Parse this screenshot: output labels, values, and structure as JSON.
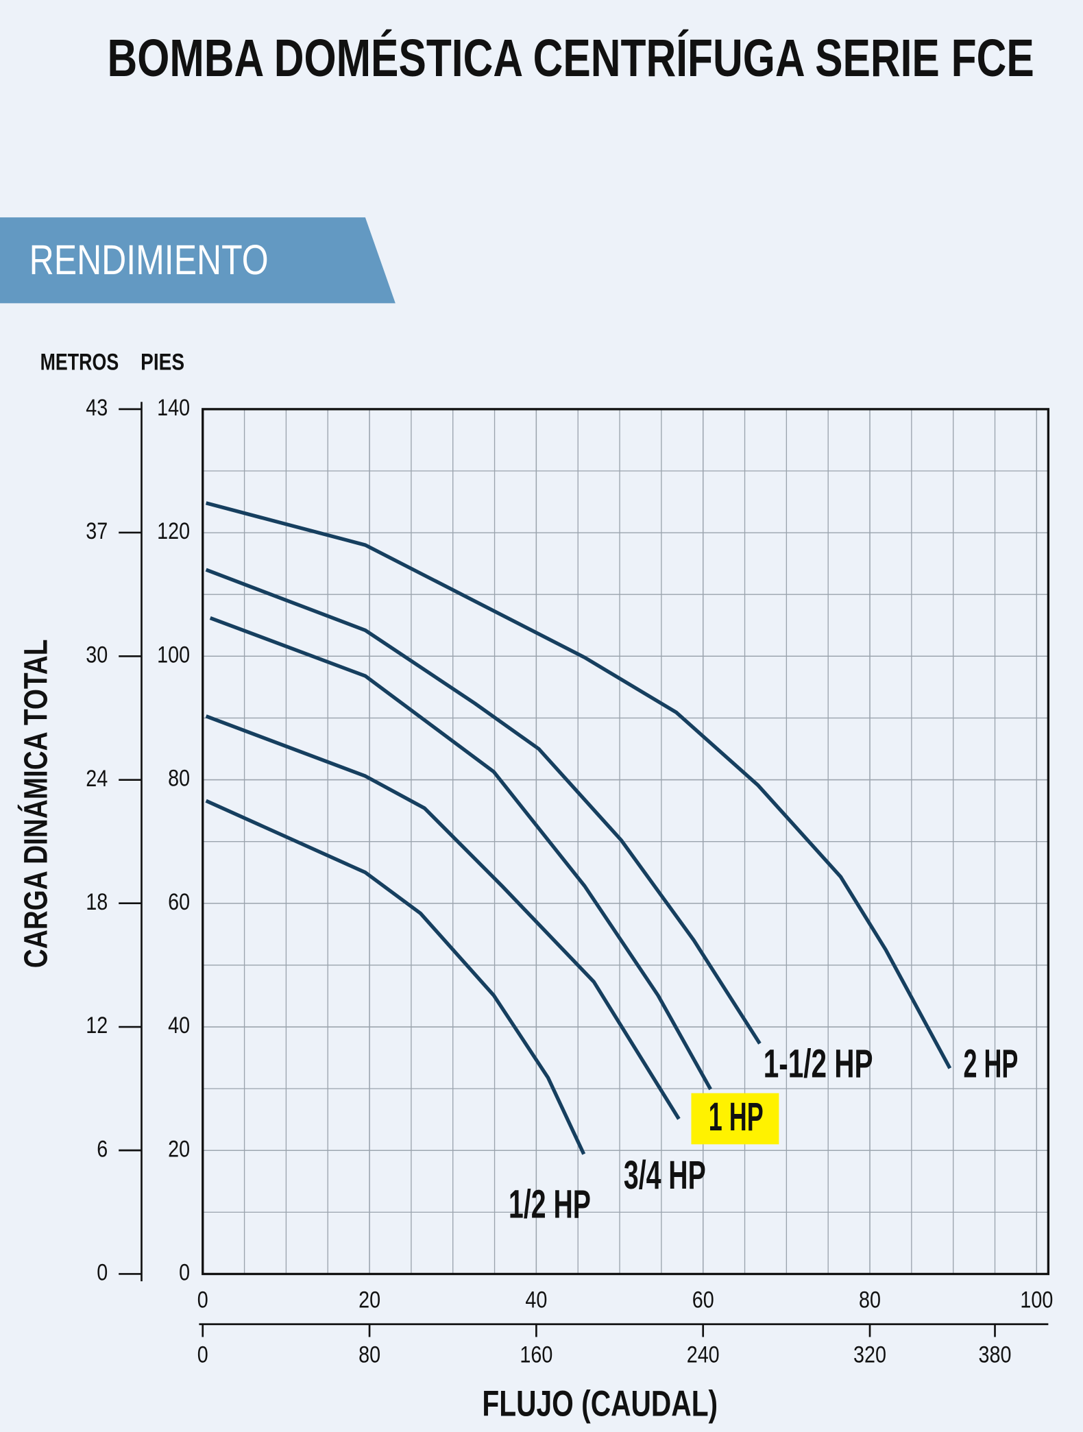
{
  "chart_data": {
    "type": "line",
    "title": "BOMBA DOMÉSTICA CENTRÍFUGA SERIE FCE",
    "section": "RENDIMIENTO",
    "y_label": "PIES",
    "y2_label": "METROS",
    "y_title": "CARGA DINÁMICA TOTAL",
    "x_title": "FLUJO (CAUDAL)",
    "xlim": [
      0,
      101.4
    ],
    "xticks": [
      0,
      20,
      40,
      60,
      80,
      100
    ],
    "x2lim": [
      0,
      400
    ],
    "x2ticks": [
      0,
      80,
      160,
      240,
      320,
      380
    ],
    "ylim": [
      0,
      140
    ],
    "yticks": [
      0,
      20,
      40,
      60,
      80,
      100,
      120,
      140
    ],
    "y2lim": [
      0,
      42.67
    ],
    "y2ticks": [
      {
        "value": 0,
        "label": "0"
      },
      {
        "value": 6.1,
        "label": "6"
      },
      {
        "value": 12.19,
        "label": "12"
      },
      {
        "value": 18.29,
        "label": "18"
      },
      {
        "value": 24.38,
        "label": "24"
      },
      {
        "value": 30.48,
        "label": "30"
      },
      {
        "value": 36.58,
        "label": "37"
      },
      {
        "value": 42.67,
        "label": "43"
      }
    ],
    "grid": true,
    "series": [
      {
        "name": "2 HP",
        "color": "#163f5f",
        "x": [
          0.4,
          19.5,
          45.8,
          56.8,
          66.6,
          76.5,
          81.9,
          89.6
        ],
        "values": [
          124.8,
          118,
          99.8,
          90.9,
          79.1,
          64.3,
          52.5,
          33.3
        ]
      },
      {
        "name": "1-1/2 HP",
        "color": "#163f5f",
        "x": [
          0.4,
          19.5,
          32.6,
          40.3,
          50.2,
          58.9,
          66.8
        ],
        "values": [
          114,
          104.2,
          92.4,
          85,
          70.2,
          54,
          37.3
        ]
      },
      {
        "name": "1 HP",
        "color": "#163f5f",
        "highlight": "#fff200",
        "x": [
          0.9,
          19.5,
          34.9,
          45.8,
          54.6,
          60.9
        ],
        "values": [
          106.2,
          96.8,
          81.3,
          62.8,
          45.1,
          29.9
        ]
      },
      {
        "name": "3/4 HP",
        "color": "#163f5f",
        "x": [
          0.4,
          19.5,
          26.6,
          35.9,
          46.9,
          57.1
        ],
        "values": [
          90.3,
          80.6,
          75.4,
          62.8,
          47.3,
          25.1
        ]
      },
      {
        "name": "1/2 HP",
        "color": "#163f5f",
        "x": [
          0.4,
          19.5,
          26.1,
          34.9,
          41.4,
          45.7
        ],
        "values": [
          76.6,
          65,
          58.4,
          45.1,
          31.8,
          19.4
        ]
      }
    ]
  }
}
